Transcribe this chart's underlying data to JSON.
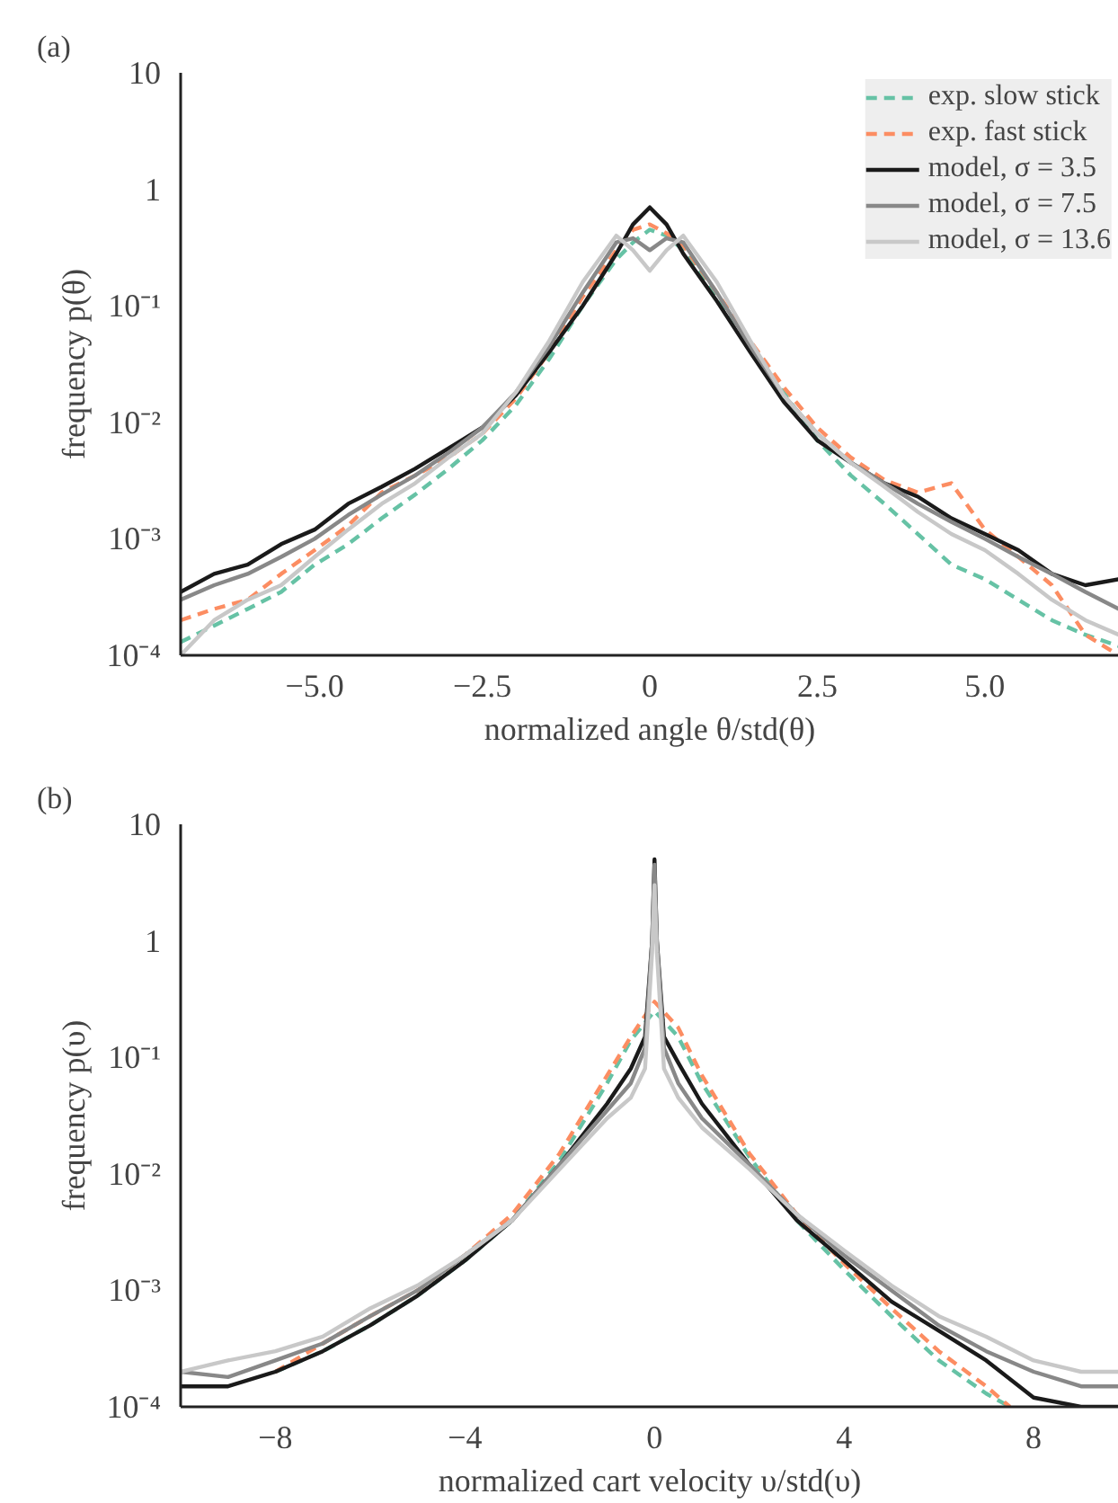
{
  "chart_data": [
    {
      "type": "line",
      "title": "(a)",
      "xlabel": "normalized angle θ/std(θ)",
      "ylabel": "frequency p(θ)",
      "log": "y",
      "grid": false,
      "legend": "top right",
      "xlim": [
        -7,
        7
      ],
      "ylim": [
        0.0001,
        10
      ],
      "xticks": [
        {
          "value": -5,
          "label": "−5.0"
        },
        {
          "value": -2.5,
          "label": "−2.5"
        },
        0,
        2.5,
        {
          "value": 5,
          "label": "5.0"
        }
      ],
      "yticks": [
        {
          "value": 0.0001,
          "label": "10⁻⁴"
        },
        {
          "value": 0.001,
          "label": "10⁻³"
        },
        {
          "value": 0.01,
          "label": "10⁻²"
        },
        {
          "value": 0.1,
          "label": "10⁻¹"
        },
        1,
        10
      ],
      "series": [
        {
          "name": "exp. slow stick",
          "color": "#66c2a5",
          "line_style": "dashed",
          "x": [
            -7,
            -6.5,
            -6,
            -5.5,
            -5,
            -4.5,
            -4,
            -3.5,
            -3,
            -2.5,
            -2,
            -1.5,
            -1,
            -0.5,
            -0.25,
            0,
            0.25,
            0.5,
            1,
            1.5,
            2,
            2.5,
            3,
            3.5,
            4,
            4.5,
            5,
            5.5,
            6,
            6.5,
            7
          ],
          "values": [
            0.00013,
            0.00018,
            0.00025,
            0.00035,
            0.0006,
            0.0009,
            0.0015,
            0.0024,
            0.004,
            0.007,
            0.014,
            0.035,
            0.1,
            0.25,
            0.35,
            0.45,
            0.4,
            0.3,
            0.12,
            0.045,
            0.018,
            0.007,
            0.0035,
            0.002,
            0.0011,
            0.0006,
            0.00045,
            0.0003,
            0.0002,
            0.00015,
            0.00012
          ]
        },
        {
          "name": "exp. fast stick",
          "color": "#fc8d62",
          "line_style": "dashed",
          "x": [
            -7,
            -6.5,
            -6,
            -5.5,
            -5,
            -4.5,
            -4,
            -3.5,
            -3,
            -2.5,
            -2,
            -1.5,
            -1,
            -0.5,
            -0.25,
            0,
            0.25,
            0.5,
            1,
            1.5,
            2,
            2.5,
            3,
            3.5,
            4,
            4.5,
            5,
            5.5,
            6,
            6.5,
            7
          ],
          "values": [
            0.0002,
            0.00025,
            0.0003,
            0.0005,
            0.0008,
            0.0013,
            0.0025,
            0.0035,
            0.005,
            0.008,
            0.016,
            0.04,
            0.12,
            0.3,
            0.45,
            0.5,
            0.42,
            0.33,
            0.13,
            0.05,
            0.02,
            0.009,
            0.005,
            0.0032,
            0.0025,
            0.003,
            0.0012,
            0.0007,
            0.0004,
            0.00015,
            0.0001
          ]
        },
        {
          "name": "model, σ = 3.5",
          "color": "#1a1a1a",
          "line_style": "solid",
          "x": [
            -7,
            -6.5,
            -6,
            -5.5,
            -5,
            -4.5,
            -4,
            -3.5,
            -3,
            -2.5,
            -2,
            -1.5,
            -1,
            -0.5,
            -0.25,
            0,
            0.25,
            0.5,
            1,
            1.5,
            2,
            2.5,
            3,
            3.5,
            4,
            4.5,
            5,
            5.5,
            6,
            6.5,
            7
          ],
          "values": [
            0.00035,
            0.0005,
            0.0006,
            0.0009,
            0.0012,
            0.002,
            0.0028,
            0.004,
            0.006,
            0.009,
            0.017,
            0.04,
            0.1,
            0.28,
            0.5,
            0.7,
            0.5,
            0.28,
            0.11,
            0.04,
            0.015,
            0.007,
            0.0045,
            0.003,
            0.0023,
            0.0015,
            0.0011,
            0.0008,
            0.0005,
            0.0004,
            0.00045
          ]
        },
        {
          "name": "model, σ = 7.5",
          "color": "#888888",
          "line_style": "solid",
          "x": [
            -7,
            -6.5,
            -6,
            -5.5,
            -5,
            -4.5,
            -4,
            -3.5,
            -3,
            -2.5,
            -2,
            -1.5,
            -1,
            -0.5,
            -0.25,
            0,
            0.25,
            0.5,
            1,
            1.5,
            2,
            2.5,
            3,
            3.5,
            4,
            4.5,
            5,
            5.5,
            6,
            6.5,
            7
          ],
          "values": [
            0.0003,
            0.0004,
            0.0005,
            0.0007,
            0.001,
            0.0016,
            0.0024,
            0.0035,
            0.0055,
            0.009,
            0.018,
            0.045,
            0.13,
            0.35,
            0.38,
            0.3,
            0.38,
            0.35,
            0.13,
            0.045,
            0.017,
            0.008,
            0.0045,
            0.003,
            0.002,
            0.0014,
            0.001,
            0.0007,
            0.0005,
            0.00035,
            0.00025
          ]
        },
        {
          "name": "model, σ = 13.6",
          "color": "#c8c8c8",
          "line_style": "solid",
          "x": [
            -7,
            -6.5,
            -6,
            -5.5,
            -5,
            -4.5,
            -4,
            -3.5,
            -3,
            -2.5,
            -2,
            -1.5,
            -1,
            -0.5,
            -0.25,
            0,
            0.25,
            0.5,
            1,
            1.5,
            2,
            2.5,
            3,
            3.5,
            4,
            4.5,
            5,
            5.5,
            6,
            6.5,
            7
          ],
          "values": [
            0.0001,
            0.0002,
            0.0003,
            0.0004,
            0.0007,
            0.0012,
            0.002,
            0.003,
            0.005,
            0.008,
            0.018,
            0.05,
            0.16,
            0.4,
            0.3,
            0.2,
            0.3,
            0.4,
            0.16,
            0.05,
            0.017,
            0.008,
            0.0045,
            0.0028,
            0.0017,
            0.0011,
            0.0008,
            0.0005,
            0.0003,
            0.0002,
            0.00015
          ]
        }
      ]
    },
    {
      "type": "line",
      "title": "(b)",
      "xlabel": "normalized cart velocity υ/std(υ)",
      "ylabel": "frequency p(υ)",
      "log": "y",
      "grid": false,
      "xlim": [
        -10,
        9.8
      ],
      "ylim": [
        0.0001,
        10
      ],
      "xticks": [
        {
          "value": -8,
          "label": "−8"
        },
        {
          "value": -4,
          "label": "−4"
        },
        0,
        4,
        8
      ],
      "yticks": [
        {
          "value": 0.0001,
          "label": "10⁻⁴"
        },
        {
          "value": 0.001,
          "label": "10⁻³"
        },
        {
          "value": 0.01,
          "label": "10⁻²"
        },
        {
          "value": 0.1,
          "label": "10⁻¹"
        },
        1,
        10
      ],
      "series": [
        {
          "color": "#66c2a5",
          "line_style": "dashed",
          "x": [
            -8,
            -7,
            -6,
            -5,
            -4,
            -3,
            -2,
            -1,
            -0.5,
            0,
            0.5,
            1,
            2,
            3,
            4,
            5,
            6,
            7,
            7.5
          ],
          "values": [
            0.0002,
            0.0003,
            0.0005,
            0.0009,
            0.0018,
            0.004,
            0.013,
            0.06,
            0.14,
            0.25,
            0.15,
            0.06,
            0.014,
            0.004,
            0.0015,
            0.0006,
            0.00025,
            0.00013,
            0.0001
          ]
        },
        {
          "color": "#fc8d62",
          "line_style": "dashed",
          "x": [
            -8,
            -7,
            -6,
            -5,
            -4,
            -3,
            -2,
            -1,
            -0.5,
            0,
            0.5,
            1,
            2,
            3,
            4,
            5,
            6,
            7,
            7.5
          ],
          "values": [
            0.0002,
            0.00035,
            0.0006,
            0.001,
            0.002,
            0.0045,
            0.015,
            0.07,
            0.15,
            0.3,
            0.18,
            0.07,
            0.015,
            0.0045,
            0.0017,
            0.0007,
            0.0003,
            0.00015,
            0.0001
          ]
        },
        {
          "color": "#1a1a1a",
          "line_style": "solid",
          "x": [
            -10,
            -9,
            -8,
            -7,
            -6,
            -5,
            -4,
            -3,
            -2,
            -1,
            -0.5,
            -0.2,
            -0.05,
            0,
            0.05,
            0.2,
            0.5,
            1,
            2,
            3,
            4,
            5,
            6,
            7,
            8,
            9,
            9.8
          ],
          "values": [
            0.00015,
            0.00015,
            0.0002,
            0.0003,
            0.0005,
            0.0009,
            0.0018,
            0.004,
            0.012,
            0.04,
            0.08,
            0.15,
            1,
            5,
            1,
            0.15,
            0.09,
            0.04,
            0.012,
            0.004,
            0.0018,
            0.0008,
            0.00045,
            0.00025,
            0.00012,
            0.0001,
            0.0001
          ]
        },
        {
          "color": "#888888",
          "line_style": "solid",
          "x": [
            -10,
            -9,
            -8,
            -7,
            -6,
            -5,
            -4,
            -3,
            -2,
            -1,
            -0.5,
            -0.2,
            -0.05,
            0,
            0.05,
            0.2,
            0.5,
            1,
            2,
            3,
            4,
            5,
            6,
            7,
            8,
            9,
            9.8
          ],
          "values": [
            0.0002,
            0.00018,
            0.00025,
            0.00035,
            0.0006,
            0.001,
            0.002,
            0.004,
            0.012,
            0.035,
            0.06,
            0.12,
            1,
            4.5,
            1,
            0.12,
            0.06,
            0.03,
            0.012,
            0.0045,
            0.002,
            0.001,
            0.0005,
            0.0003,
            0.0002,
            0.00015,
            0.00015
          ]
        },
        {
          "color": "#c8c8c8",
          "line_style": "solid",
          "x": [
            -10,
            -9,
            -8,
            -7,
            -6,
            -5,
            -4,
            -3,
            -2,
            -1,
            -0.5,
            -0.2,
            -0.05,
            0,
            0.05,
            0.2,
            0.5,
            1,
            2,
            3,
            4,
            5,
            6,
            7,
            8,
            9,
            9.8
          ],
          "values": [
            0.0002,
            0.00025,
            0.0003,
            0.0004,
            0.0007,
            0.0011,
            0.002,
            0.004,
            0.011,
            0.03,
            0.045,
            0.08,
            0.8,
            3,
            0.8,
            0.08,
            0.045,
            0.025,
            0.011,
            0.0045,
            0.0022,
            0.0011,
            0.0006,
            0.0004,
            0.00025,
            0.0002,
            0.0002
          ]
        }
      ]
    }
  ]
}
